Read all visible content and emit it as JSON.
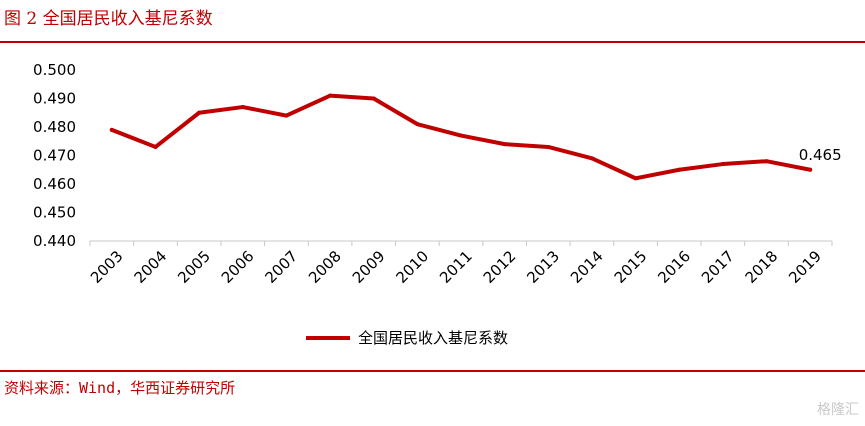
{
  "figure_title": "图 2 全国居民收入基尼系数",
  "source": "资料来源：Wind，华西证券研究所",
  "watermark": "格隆汇",
  "colors": {
    "accent": "#c00000",
    "series": "#c00000",
    "axis": "#c8c8c8"
  },
  "chart_data": {
    "type": "line",
    "title": "",
    "xlabel": "",
    "ylabel": "",
    "x": [
      "2003",
      "2004",
      "2005",
      "2006",
      "2007",
      "2008",
      "2009",
      "2010",
      "2011",
      "2012",
      "2013",
      "2014",
      "2015",
      "2016",
      "2017",
      "2018",
      "2019"
    ],
    "series": [
      {
        "name": "全国居民收入基尼系数",
        "values": [
          0.479,
          0.473,
          0.485,
          0.487,
          0.484,
          0.491,
          0.49,
          0.481,
          0.477,
          0.474,
          0.473,
          0.469,
          0.462,
          0.465,
          0.467,
          0.468,
          0.465
        ]
      }
    ],
    "ylim": [
      0.44,
      0.5
    ],
    "yticks": [
      "0.500",
      "0.490",
      "0.480",
      "0.470",
      "0.460",
      "0.450",
      "0.440"
    ],
    "annotation": {
      "x": "2019",
      "text": "0.465"
    },
    "legend": "bottom-center",
    "grid": false
  }
}
